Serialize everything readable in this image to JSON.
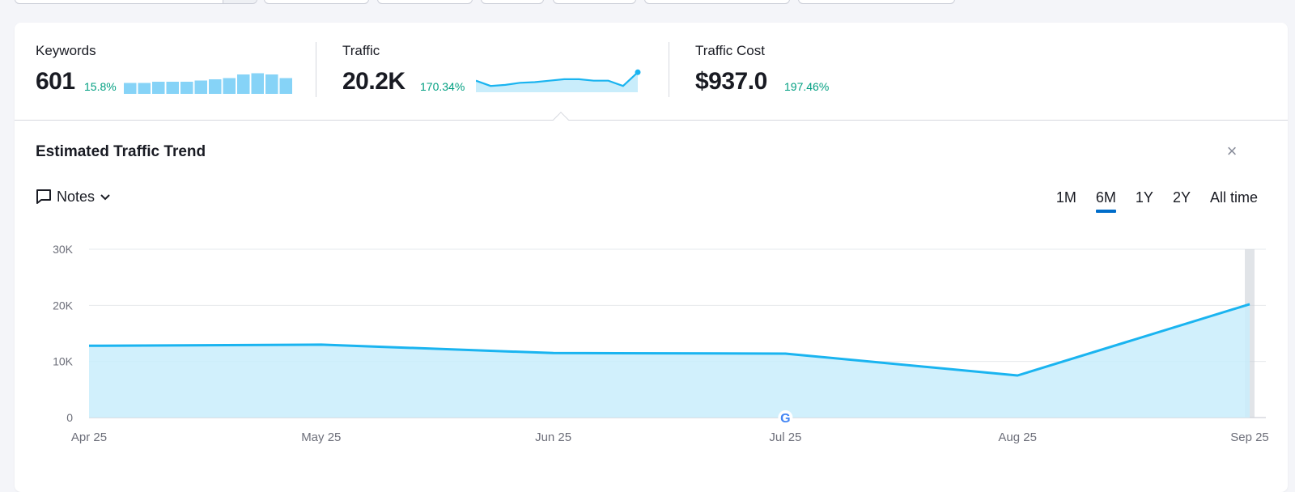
{
  "colors": {
    "accent": "#1ab4f0",
    "area_fill": "#c9edfb",
    "positive": "#009f81",
    "active_tab": "#006dca"
  },
  "metrics": {
    "keywords": {
      "label": "Keywords",
      "value": "601",
      "delta": "15.8%",
      "bars": [
        0.45,
        0.45,
        0.5,
        0.5,
        0.5,
        0.55,
        0.6,
        0.65,
        0.8,
        0.85,
        0.8,
        0.65,
        0.7
      ]
    },
    "traffic": {
      "label": "Traffic",
      "value": "20.2K",
      "delta": "170.34%",
      "sparkline": [
        0.55,
        0.3,
        0.35,
        0.45,
        0.48,
        0.55,
        0.62,
        0.62,
        0.55,
        0.55,
        0.3,
        0.95
      ]
    },
    "traffic_cost": {
      "label": "Traffic Cost",
      "value": "$937.0",
      "delta": "197.46%"
    }
  },
  "panel": {
    "title": "Estimated Traffic Trend",
    "close_icon": "close-icon",
    "notes_label": "Notes",
    "notes_icon": "comment-icon",
    "period_tabs": [
      {
        "label": "1M",
        "active": false
      },
      {
        "label": "6M",
        "active": true
      },
      {
        "label": "1Y",
        "active": false
      },
      {
        "label": "2Y",
        "active": false
      },
      {
        "label": "All time",
        "active": false
      }
    ]
  },
  "chart_data": {
    "type": "area",
    "x": [
      "Apr 25",
      "May 25",
      "Jun 25",
      "Jul 25",
      "Aug 25",
      "Sep 25"
    ],
    "values": [
      12800,
      13000,
      11500,
      11400,
      7500,
      20200
    ],
    "y_ticks": [
      "0",
      "10K",
      "20K",
      "30K"
    ],
    "ylim": [
      0,
      30000
    ],
    "grid": true,
    "annotations": [
      {
        "x": "Jul 25",
        "icon": "google-icon"
      }
    ]
  }
}
